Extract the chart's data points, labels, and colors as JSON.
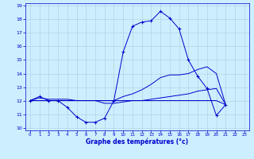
{
  "title": "",
  "xlabel": "Graphe des températures (°c)",
  "bg_color": "#cceeff",
  "line_color": "#0000cc",
  "grid_color": "#aaccdd",
  "xlim": [
    -0.5,
    23.5
  ],
  "ylim": [
    9.8,
    19.2
  ],
  "xticks": [
    0,
    1,
    2,
    3,
    4,
    5,
    6,
    7,
    8,
    9,
    10,
    11,
    12,
    13,
    14,
    15,
    16,
    17,
    18,
    19,
    20,
    21,
    22,
    23
  ],
  "yticks": [
    10,
    11,
    12,
    13,
    14,
    15,
    16,
    17,
    18,
    19
  ],
  "series": {
    "line1_y": [
      12.0,
      12.3,
      12.0,
      12.0,
      11.5,
      10.8,
      10.4,
      10.4,
      10.7,
      12.0,
      15.6,
      17.5,
      17.8,
      17.9,
      18.6,
      18.1,
      17.3,
      15.0,
      13.8,
      12.9,
      10.9,
      11.7,
      null,
      null
    ],
    "line2_y": [
      12.0,
      12.2,
      12.1,
      12.1,
      12.1,
      12.0,
      12.0,
      12.0,
      12.0,
      12.0,
      12.3,
      12.5,
      12.8,
      13.2,
      13.7,
      13.9,
      13.9,
      14.0,
      14.3,
      14.5,
      14.0,
      11.7,
      null,
      null
    ],
    "line3_y": [
      12.0,
      12.0,
      12.0,
      12.0,
      12.0,
      12.0,
      12.0,
      12.0,
      11.8,
      11.8,
      11.9,
      12.0,
      12.0,
      12.1,
      12.2,
      12.3,
      12.4,
      12.5,
      12.7,
      12.8,
      12.9,
      11.7,
      null,
      null
    ],
    "line4_y": [
      12.0,
      12.0,
      12.0,
      12.0,
      12.0,
      12.0,
      12.0,
      12.0,
      12.0,
      12.0,
      12.0,
      12.0,
      12.0,
      12.0,
      12.0,
      12.0,
      12.0,
      12.0,
      12.0,
      12.0,
      12.0,
      11.7,
      null,
      null
    ]
  }
}
